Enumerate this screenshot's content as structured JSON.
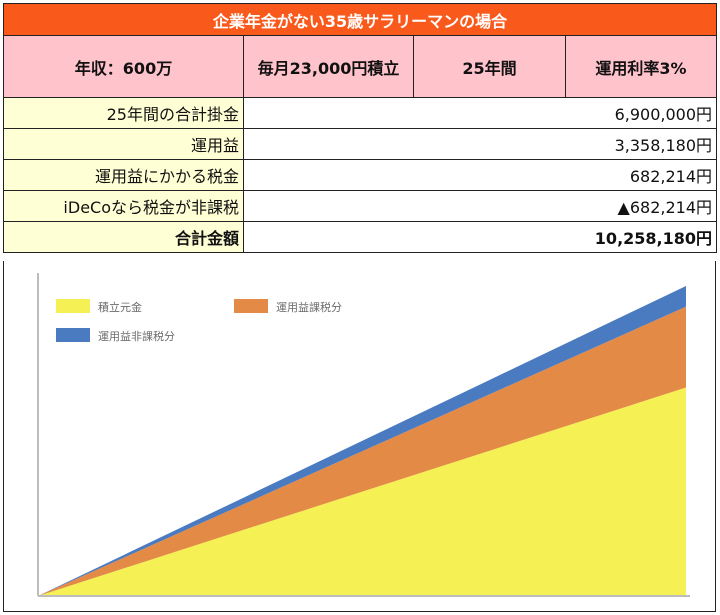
{
  "table": {
    "title": "企業年金がない35歳サラリーマンの場合",
    "headers": [
      "年収：600万",
      "毎月23,000円積立",
      "25年間",
      "運用利率3%"
    ],
    "rows": [
      {
        "label": "25年間の合計掛金",
        "value": "6,900,000円"
      },
      {
        "label": "運用益",
        "value": "3,358,180円"
      },
      {
        "label": "運用益にかかる税金",
        "value": "682,214円"
      },
      {
        "label": "iDeCoなら税金が非課税",
        "value": "▲682,214円"
      }
    ],
    "total": {
      "label": "合計金額",
      "value": "10,258,180円"
    }
  },
  "chart_data": {
    "type": "area",
    "stacked": true,
    "x": [
      0,
      25
    ],
    "xlabel": "",
    "ylabel": "",
    "grid": false,
    "legend_position": "top-left",
    "series": [
      {
        "name": "積立元金",
        "color": "#f5f053",
        "values": [
          0,
          6900000
        ]
      },
      {
        "name": "運用益課税分",
        "color": "#e48a47",
        "values": [
          0,
          2675966
        ]
      },
      {
        "name": "運用益非課税分",
        "color": "#4a7ac0",
        "values": [
          0,
          682214
        ]
      }
    ],
    "ylim": [
      0,
      10258180
    ]
  }
}
